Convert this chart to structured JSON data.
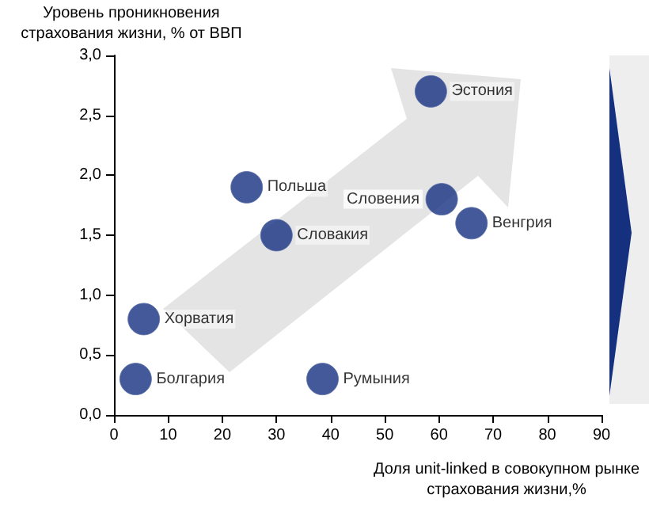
{
  "chart_data": {
    "type": "scatter",
    "xlabel": "Доля unit-linked в совокупном рынке страхования жизни,%",
    "ylabel": "Уровень проникновения страхования жизни, % от ВВП",
    "series": [
      {
        "color": "#14307f",
        "x": [
          4,
          5.5,
          24.5,
          30,
          38.5,
          58.5,
          60.5,
          66
        ],
        "values": [
          0.3,
          0.8,
          1.9,
          1.5,
          0.3,
          2.7,
          1.8,
          1.6
        ]
      }
    ],
    "annotations": [
      {
        "text": "Болгария",
        "x": 4,
        "y": 0.3
      },
      {
        "text": "Хорватия",
        "x": 5.5,
        "y": 0.8
      },
      {
        "text": "Польша",
        "x": 24.5,
        "y": 1.9
      },
      {
        "text": "Словакия",
        "x": 30,
        "y": 1.5
      },
      {
        "text": "Румыния",
        "x": 38.5,
        "y": 0.3
      },
      {
        "text": "Эстония",
        "x": 58.5,
        "y": 2.7
      },
      {
        "text": "Словения",
        "x": 60.5,
        "y": 1.8
      },
      {
        "text": "Венгрия",
        "x": 66,
        "y": 1.6
      }
    ],
    "xlim": [
      0,
      90
    ],
    "xticks": [
      0,
      10,
      20,
      30,
      40,
      50,
      60,
      70,
      80,
      90
    ],
    "ylim": [
      0,
      3
    ],
    "yticks": [
      {
        "value": 0,
        "label": "0,0"
      },
      {
        "value": 0.5,
        "label": "0,5"
      },
      {
        "value": 1,
        "label": "1,0"
      },
      {
        "value": 1.5,
        "label": "1,5"
      },
      {
        "value": 2,
        "label": "2,0"
      },
      {
        "value": 2.5,
        "label": "2,5"
      },
      {
        "value": 3,
        "label": "3,0"
      }
    ],
    "grid": false,
    "marker": "circle"
  }
}
